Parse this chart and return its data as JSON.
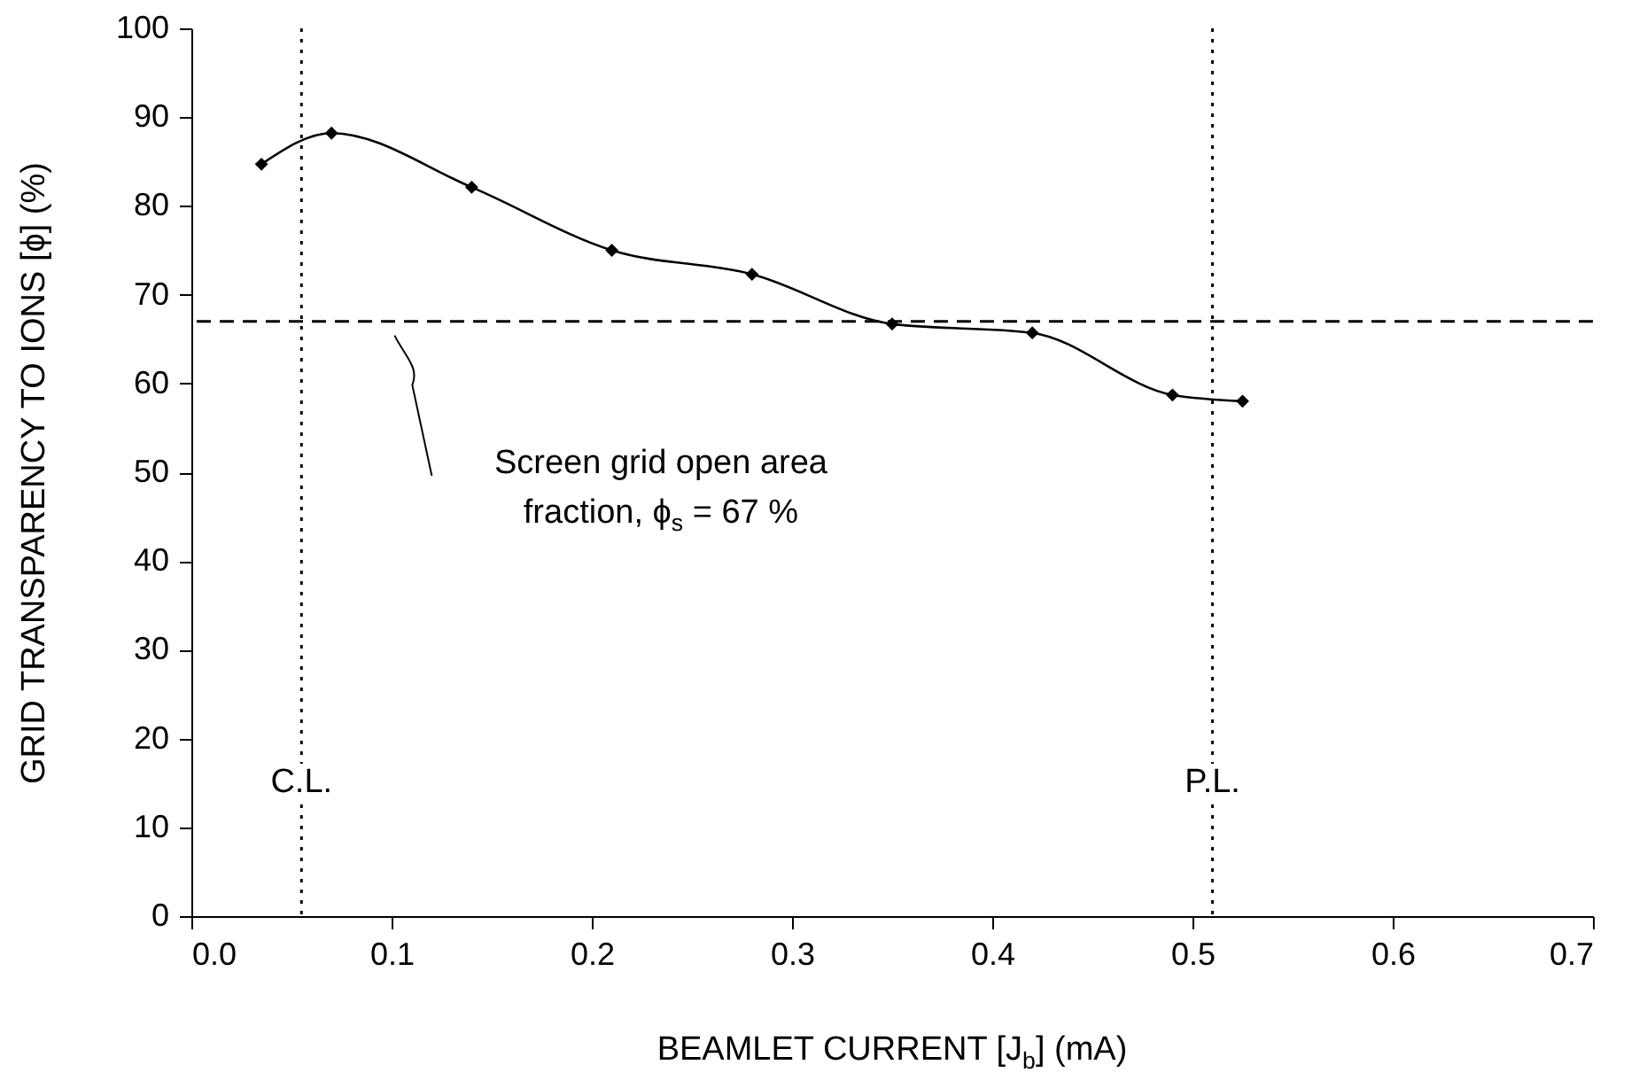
{
  "chart_data": {
    "type": "line",
    "xlabel": "BEAMLET CURRENT [J$_{b}$] (mA)",
    "ylabel": "GRID TRANSPARENCY TO IONS [ϕ] (%)",
    "x": [
      0.035,
      0.07,
      0.14,
      0.21,
      0.28,
      0.35,
      0.42,
      0.49,
      0.525
    ],
    "series": [
      {
        "color": "#000000",
        "values": [
          84.7,
          88.2,
          82.1,
          75.0,
          72.3,
          66.7,
          65.7,
          58.7,
          58.0
        ]
      }
    ],
    "xlim": [
      0,
      0.7
    ],
    "xticks": [
      {
        "value": 0,
        "label": "0.0"
      },
      0.1,
      0.2,
      0.3,
      0.4,
      0.5,
      0.6,
      0.7
    ],
    "ylim": [
      0,
      100
    ],
    "yticks": [
      0,
      10,
      20,
      30,
      40,
      50,
      60,
      70,
      80,
      90,
      100
    ],
    "ref_lines": [
      {
        "axis": "x",
        "value": 0.055,
        "label": "C.L.",
        "line_style": "dotted",
        "color": "#000000"
      },
      {
        "axis": "x",
        "value": 0.51,
        "label": "P.L.",
        "line_style": "dotted",
        "color": "#000000"
      },
      {
        "axis": "y",
        "value": 67,
        "line_style": "dashed",
        "color": "#000000"
      }
    ],
    "annotations": [
      "Screen grid open area fraction, ϕ$_{s}$ = 67 %"
    ],
    "marker": "diamond",
    "grid": false
  }
}
